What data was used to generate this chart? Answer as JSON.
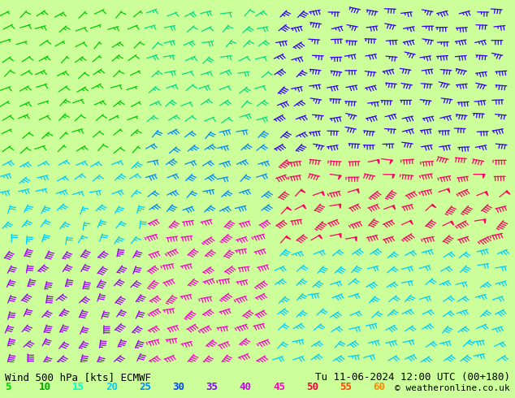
{
  "title_left": "Wind 500 hPa [kts] ECMWF",
  "title_right": "Tu 11-06-2024 12:00 UTC (00+180)",
  "copyright": "© weatheronline.co.uk",
  "legend_values": [
    5,
    10,
    15,
    20,
    25,
    30,
    35,
    40,
    45,
    50,
    55,
    60
  ],
  "legend_colors": [
    "#00cc00",
    "#00aa00",
    "#00ffcc",
    "#00ccff",
    "#0088ff",
    "#0044ff",
    "#8800ff",
    "#cc00ff",
    "#ff00cc",
    "#ff0044",
    "#ff4400",
    "#ff8800"
  ],
  "background_color": "#ccff99",
  "map_background": "#ffffff",
  "bottom_bar_color": "#f0f0f0",
  "text_color": "#000000",
  "figsize": [
    6.34,
    4.9
  ],
  "dpi": 100,
  "speed_color_map": {
    "5": "#00dd00",
    "10": "#00aa00",
    "15": "#00ffcc",
    "20": "#00ccff",
    "25": "#0088ff",
    "30": "#0044ee",
    "35": "#8800ee",
    "40": "#cc00ff",
    "45": "#ff00cc",
    "50": "#ff0044",
    "55": "#ff6600",
    "60": "#ffaa00"
  }
}
